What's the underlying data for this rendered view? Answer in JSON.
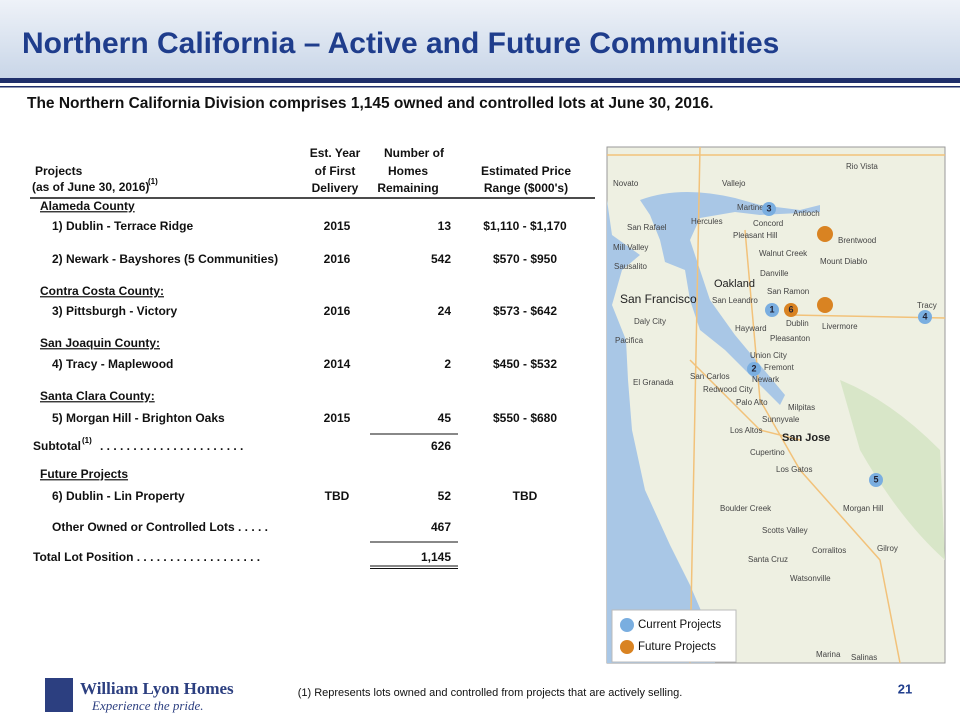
{
  "header": {
    "title": "Northern California – Active and Future Communities",
    "subtitle": "The Northern California Division comprises 1,145 owned and controlled lots at June 30, 2016."
  },
  "table": {
    "headers": [
      [
        "Projects",
        "(as of June 30, 2016)"
      ],
      [
        "Est. Year",
        "of First",
        "Delivery"
      ],
      [
        "Number of",
        "Homes",
        "Remaining"
      ],
      [
        "Estimated Price",
        "Range ($000's)"
      ]
    ],
    "header_note": "(1)",
    "sections": [
      {
        "heading": "Alameda County",
        "projects": [
          {
            "name": "1) Dublin - Terrace Ridge",
            "year": 2015,
            "homes": 13,
            "price": "$1,110 - $1,170"
          },
          {
            "name": "2) Newark - Bayshores (5 Communities)",
            "year": 2016,
            "homes": 542,
            "price": "$570 - $950"
          }
        ]
      },
      {
        "heading": "Contra Costa County:",
        "projects": [
          {
            "name": "3) Pittsburgh - Victory",
            "year": 2016,
            "homes": 24,
            "price": "$573 - $642"
          }
        ]
      },
      {
        "heading": "San Joaquin County:",
        "projects": [
          {
            "name": "4) Tracy - Maplewood",
            "year": 2014,
            "homes": 2,
            "price": "$450 - $532"
          }
        ]
      },
      {
        "heading": "Santa Clara County:",
        "projects": [
          {
            "name": "5) Morgan Hill - Brighton Oaks",
            "year": 2015,
            "homes": 45,
            "price": "$550 - $680"
          }
        ]
      }
    ],
    "subtotal": {
      "label": "Subtotal",
      "note": "(1)",
      "leader": ". . . . . . . . . . . . . . . . . . . . . .",
      "homes": 626
    },
    "future": {
      "heading": "Future Projects",
      "projects": [
        {
          "name": "6) Dublin - Lin Property",
          "year": "TBD",
          "homes": 52,
          "price": "TBD"
        }
      ]
    },
    "other": {
      "label": "Other Owned or Controlled Lots . . . . .",
      "homes": 467
    },
    "total": {
      "label": "Total Lot Position . . . . . . . . . . . . . . . . . . .",
      "homes": "1,145"
    }
  },
  "map": {
    "markers": [
      "1",
      "2",
      "3",
      "4",
      "5",
      "6"
    ],
    "places": [
      "Novato",
      "Vallejo",
      "Martinez",
      "Antioch",
      "Concord",
      "San Rafael",
      "Hercules",
      "Pleasant Hill",
      "Brentwood",
      "Mill Valley",
      "Walnut Creek",
      "Sausalito",
      "Oakland",
      "Danville",
      "San Francisco",
      "San Leandro",
      "San Ramon",
      "Daly City",
      "Dublin",
      "Livermore",
      "Tracy",
      "Pacifica",
      "Hayward",
      "Pleasanton",
      "Union City",
      "Fremont",
      "San Carlos",
      "Newark",
      "El Granada",
      "Redwood City",
      "Palo Alto",
      "Milpitas",
      "Sunnyvale",
      "Los Altos",
      "San Jose",
      "Cupertino",
      "Los Gatos",
      "Morgan Hill",
      "Boulder Creek",
      "Scotts Valley",
      "Corralitos",
      "Gilroy",
      "Santa Cruz",
      "Watsonville",
      "Marina",
      "Salinas",
      "Rio Vista",
      "Mount Diablo"
    ],
    "legend": [
      "Current Projects",
      "Future Projects"
    ]
  },
  "footer": {
    "logo": "William Lyon Homes",
    "tagline": "Experience the pride.",
    "note": "(1) Represents lots owned and controlled from projects that are actively selling.",
    "page": "21"
  }
}
